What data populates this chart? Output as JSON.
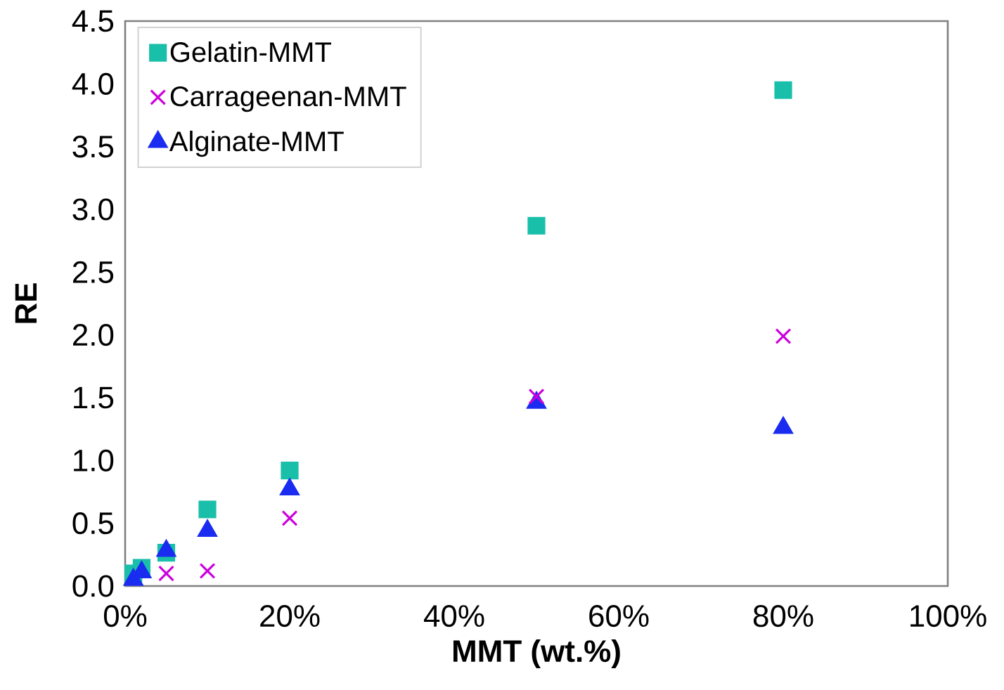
{
  "chart_data": {
    "type": "scatter",
    "xlabel": "MMT (wt.%)",
    "ylabel": "RE",
    "xlim": [
      0,
      100
    ],
    "ylim": [
      0,
      4.5
    ],
    "xticks": [
      {
        "value": 0,
        "label": "0%"
      },
      {
        "value": 20,
        "label": "20%"
      },
      {
        "value": 40,
        "label": "40%"
      },
      {
        "value": 60,
        "label": "60%"
      },
      {
        "value": 80,
        "label": "80%"
      },
      {
        "value": 100,
        "label": "100%"
      }
    ],
    "yticks": [
      {
        "value": 0,
        "label": "0.0"
      },
      {
        "value": 0.5,
        "label": "0.5"
      },
      {
        "value": 1,
        "label": "1.0"
      },
      {
        "value": 1.5,
        "label": "1.5"
      },
      {
        "value": 2,
        "label": "2.0"
      },
      {
        "value": 2.5,
        "label": "2.5"
      },
      {
        "value": 3,
        "label": "3.0"
      },
      {
        "value": 3.5,
        "label": "3.5"
      },
      {
        "value": 4,
        "label": "4.0"
      },
      {
        "value": 4.5,
        "label": "4.5"
      }
    ],
    "legend": "top left",
    "grid": false,
    "series": [
      {
        "name": "Gelatin-MMT",
        "color": "#1abfaa",
        "marker": "square",
        "x": [
          1,
          2,
          5,
          10,
          20,
          50,
          80
        ],
        "values": [
          0.1,
          0.145,
          0.265,
          0.61,
          0.92,
          2.87,
          3.95
        ]
      },
      {
        "name": "Carrageenan-MMT",
        "color": "#cc00dd",
        "marker": "cross",
        "x": [
          5,
          10,
          20,
          50,
          80
        ],
        "values": [
          0.1,
          0.12,
          0.54,
          1.51,
          1.99
        ]
      },
      {
        "name": "Alginate-MMT",
        "color": "#1a2cf0",
        "marker": "triangle",
        "x": [
          1,
          2,
          5,
          10,
          20,
          50,
          80
        ],
        "values": [
          0.05,
          0.11,
          0.28,
          0.44,
          0.77,
          1.46,
          1.26
        ]
      }
    ]
  }
}
